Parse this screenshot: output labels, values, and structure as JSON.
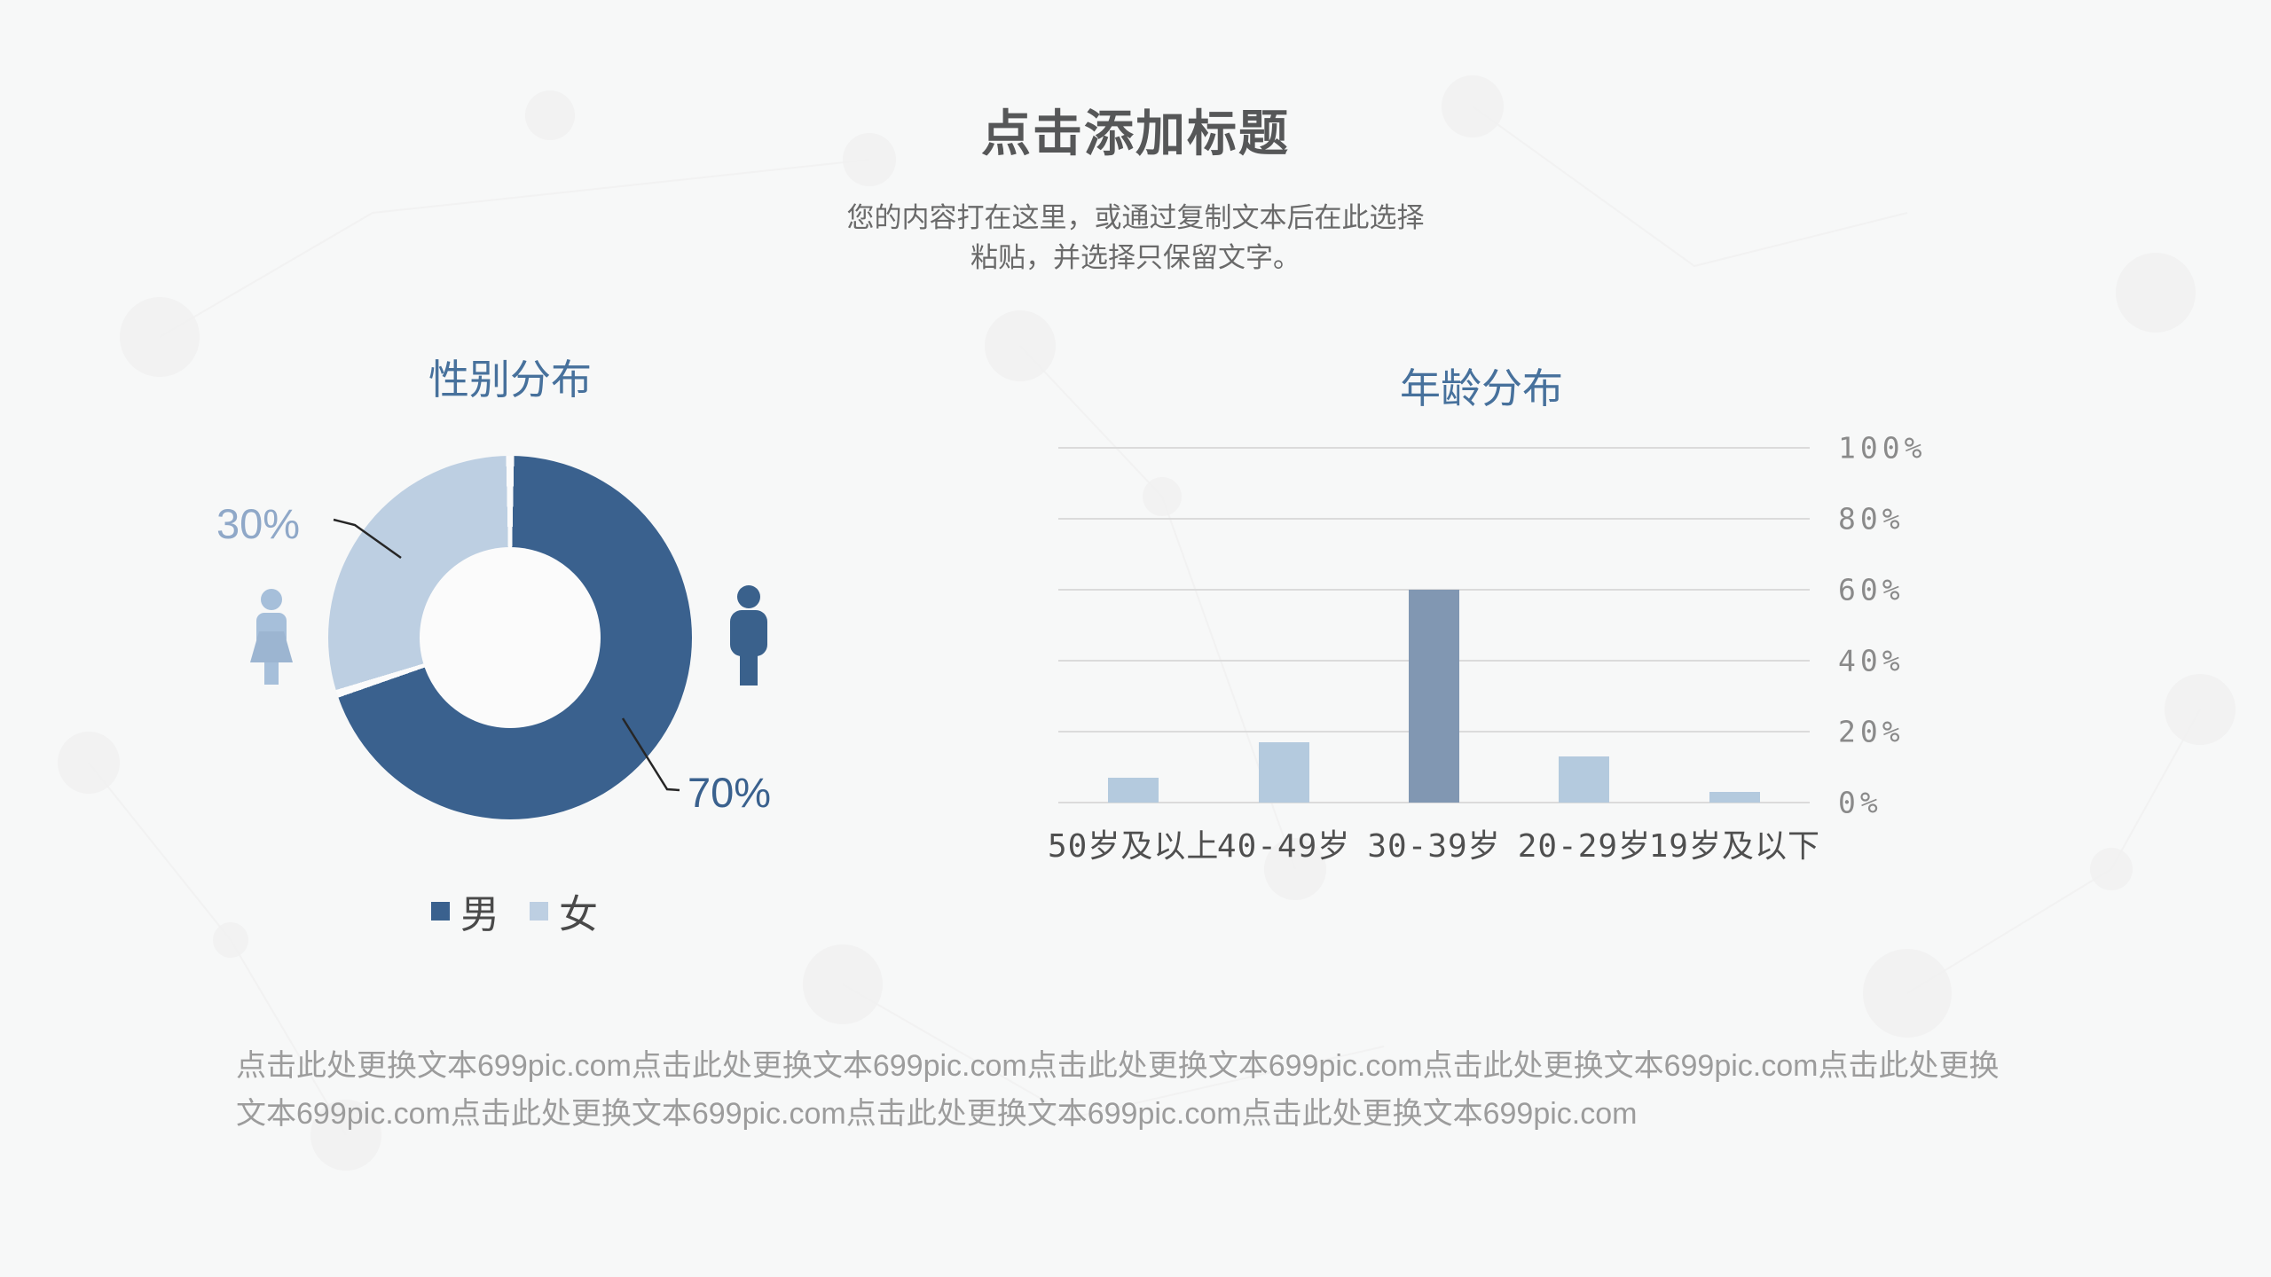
{
  "slide": {
    "title": "点击添加标题",
    "subtitle_lines": [
      "您的内容打在这里，或通过复制文本后在此选择",
      "粘贴，并选择只保留文字。"
    ],
    "footer_text": "点击此处更换文本699pic.com点击此处更换文本699pic.com点击此处更换文本699pic.com点击此处更换文本699pic.com点击此处更换文本699pic.com点击此处更换文本699pic.com点击此处更换文本699pic.com点击此处更换文本699pic.com"
  },
  "colors": {
    "male_dark_blue": "#3A618E",
    "female_light_blue": "#BDCFE2",
    "bar_light": "#B4CADE",
    "bar_highlight": "#8197B2",
    "chart_title_blue": "#47719C"
  },
  "chart_data": [
    {
      "type": "pie",
      "title": "性别分布",
      "labels": [
        "男",
        "女"
      ],
      "values": [
        70,
        30
      ],
      "colors": [
        "#3A618E",
        "#BDCFE2"
      ],
      "donut": true,
      "data_labels": [
        "70%",
        "30%"
      ],
      "legend_position": "bottom"
    },
    {
      "type": "bar",
      "title": "年龄分布",
      "categories": [
        "50岁及以上",
        "40-49岁",
        "30-39岁",
        "20-29岁",
        "19岁及以下"
      ],
      "values": [
        7,
        17,
        60,
        13,
        3
      ],
      "bar_colors": [
        "#B4CADE",
        "#B4CADE",
        "#8197B2",
        "#B4CADE",
        "#B4CADE"
      ],
      "yticks": [
        "0%",
        "20%",
        "40%",
        "60%",
        "80%",
        "100%"
      ],
      "ylim": [
        0,
        100
      ],
      "grid": true,
      "yaxis_side": "right",
      "legend": "none"
    }
  ]
}
